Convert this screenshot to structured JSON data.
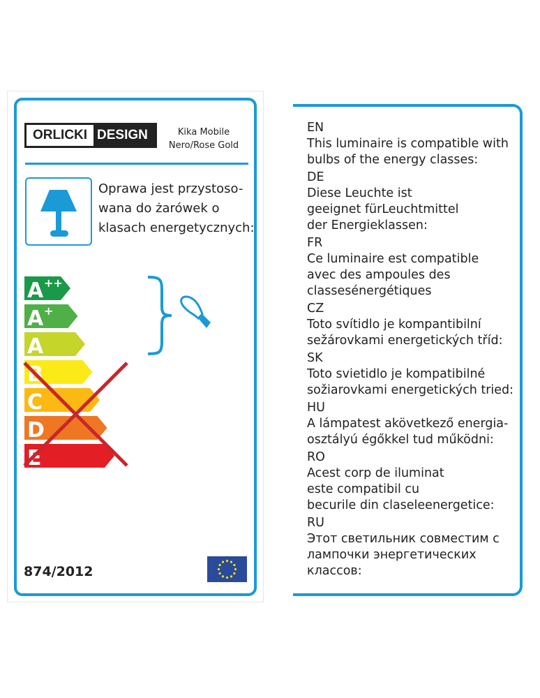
{
  "brand": {
    "logo_left": "ORLICKI",
    "logo_right": "DESIGN"
  },
  "product": {
    "line1": "Kika Mobile",
    "line2": "Nero/Rose Gold"
  },
  "polish_text": [
    "Oprawa jest przystoso-",
    "wana do żarówek o",
    "klasach energetycznych:"
  ],
  "energy_classes": [
    {
      "label": "A",
      "sup": "++",
      "color": "#1a9a48",
      "compatible": true
    },
    {
      "label": "A",
      "sup": "+",
      "color": "#4fb047",
      "compatible": true
    },
    {
      "label": "A",
      "sup": "",
      "color": "#c5d52a",
      "compatible": true
    },
    {
      "label": "B",
      "sup": "",
      "color": "#fbea17",
      "compatible": false
    },
    {
      "label": "C",
      "sup": "",
      "color": "#fbb913",
      "compatible": false
    },
    {
      "label": "D",
      "sup": "",
      "color": "#ef7723",
      "compatible": false
    },
    {
      "label": "E",
      "sup": "",
      "color": "#e31e25",
      "compatible": false
    }
  ],
  "regulation": "874/2012",
  "icons": [
    "lamp-icon",
    "bulb-icon",
    "eu-flag-icon",
    "cross-mark-icon"
  ],
  "colors": {
    "accent": "#1a9ad6",
    "cross": "#c8262c",
    "eu": "#2a4a9c"
  },
  "translations": [
    {
      "code": "EN",
      "lines": [
        "This luminaire is compatible with",
        "bulbs of the energy classes:"
      ]
    },
    {
      "code": "DE",
      "lines": [
        "Diese Leuchte ist",
        "geeignet fürLeuchtmittel",
        "der Energieklassen:"
      ]
    },
    {
      "code": "FR",
      "lines": [
        "Ce luminaire est compatible",
        "avec des ampoules des",
        "classesénergétiques"
      ]
    },
    {
      "code": "CZ",
      "lines": [
        "Toto svítidlo je kompantibilní",
        "sežárovkami energetických tříd:"
      ]
    },
    {
      "code": "SK",
      "lines": [
        "Toto svietidlo je kompatibilné",
        "sožiarovkami energetických tried:"
      ]
    },
    {
      "code": "HU",
      "lines": [
        "A lámpatest akövetkező energia-",
        "osztályú égőkkel tud működni:"
      ]
    },
    {
      "code": "RO",
      "lines": [
        "Acest corp de iluminat",
        "este compatibil cu",
        "becurile din claseleenergetice:"
      ]
    },
    {
      "code": "RU",
      "lines": [
        "Этот светильник совместим с",
        "лампочки энергетических",
        "классов:"
      ]
    }
  ]
}
